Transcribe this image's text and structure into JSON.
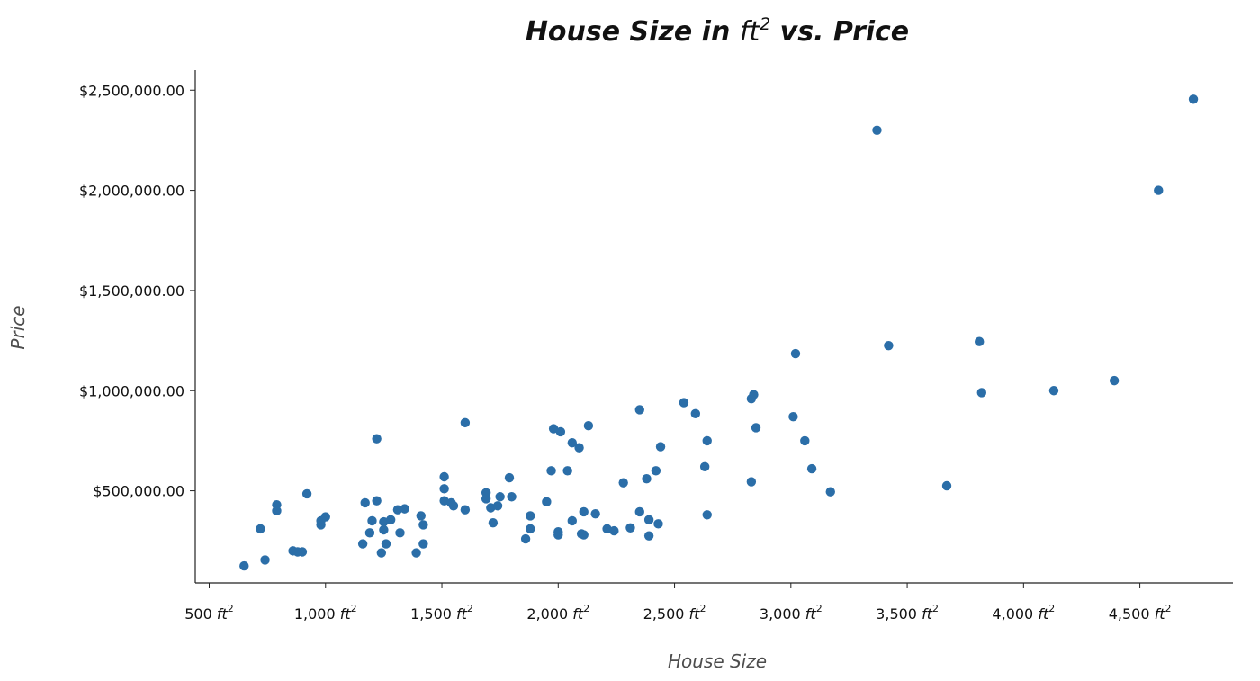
{
  "chart_data": {
    "type": "scatter",
    "title": {
      "prefix": "House Size in ",
      "unit_base": "ft",
      "unit_exp": "2",
      "suffix": " vs. Price"
    },
    "xlabel": "House Size",
    "ylabel": "Price",
    "xlim": [
      440,
      4900
    ],
    "ylim": [
      40000,
      2600000
    ],
    "grid": false,
    "marker_color": "#2b6ea8",
    "x_tick_unit": {
      "base": "ft",
      "exp": "2"
    },
    "x_ticks": [
      {
        "value": 500,
        "label": "500"
      },
      {
        "value": 1000,
        "label": "1,000"
      },
      {
        "value": 1500,
        "label": "1,500"
      },
      {
        "value": 2000,
        "label": "2,000"
      },
      {
        "value": 2500,
        "label": "2,500"
      },
      {
        "value": 3000,
        "label": "3,000"
      },
      {
        "value": 3500,
        "label": "3,500"
      },
      {
        "value": 4000,
        "label": "4,000"
      },
      {
        "value": 4500,
        "label": "4,500"
      }
    ],
    "y_ticks": [
      {
        "value": 500000,
        "label": "$500,000.00"
      },
      {
        "value": 1000000,
        "label": "$1,000,000.00"
      },
      {
        "value": 1500000,
        "label": "$1,500,000.00"
      },
      {
        "value": 2000000,
        "label": "$2,000,000.00"
      },
      {
        "value": 2500000,
        "label": "$2,500,000.00"
      }
    ],
    "series": [
      {
        "points": [
          [
            650,
            125000
          ],
          [
            720,
            310000
          ],
          [
            740,
            155000
          ],
          [
            790,
            430000
          ],
          [
            790,
            400000
          ],
          [
            860,
            200000
          ],
          [
            880,
            195000
          ],
          [
            900,
            195000
          ],
          [
            920,
            485000
          ],
          [
            980,
            350000
          ],
          [
            980,
            330000
          ],
          [
            1000,
            370000
          ],
          [
            1160,
            235000
          ],
          [
            1170,
            440000
          ],
          [
            1190,
            290000
          ],
          [
            1200,
            350000
          ],
          [
            1220,
            760000
          ],
          [
            1220,
            450000
          ],
          [
            1240,
            190000
          ],
          [
            1250,
            345000
          ],
          [
            1250,
            305000
          ],
          [
            1260,
            235000
          ],
          [
            1280,
            355000
          ],
          [
            1310,
            405000
          ],
          [
            1320,
            290000
          ],
          [
            1340,
            410000
          ],
          [
            1390,
            190000
          ],
          [
            1410,
            375000
          ],
          [
            1420,
            330000
          ],
          [
            1420,
            235000
          ],
          [
            1510,
            570000
          ],
          [
            1510,
            510000
          ],
          [
            1510,
            450000
          ],
          [
            1540,
            440000
          ],
          [
            1550,
            425000
          ],
          [
            1600,
            840000
          ],
          [
            1600,
            405000
          ],
          [
            1690,
            490000
          ],
          [
            1690,
            460000
          ],
          [
            1710,
            415000
          ],
          [
            1720,
            340000
          ],
          [
            1740,
            425000
          ],
          [
            1750,
            470000
          ],
          [
            1790,
            565000
          ],
          [
            1800,
            470000
          ],
          [
            1860,
            260000
          ],
          [
            1880,
            375000
          ],
          [
            1880,
            310000
          ],
          [
            1950,
            445000
          ],
          [
            1970,
            600000
          ],
          [
            1980,
            810000
          ],
          [
            2000,
            295000
          ],
          [
            2000,
            280000
          ],
          [
            2010,
            795000
          ],
          [
            2040,
            600000
          ],
          [
            2060,
            740000
          ],
          [
            2060,
            350000
          ],
          [
            2090,
            715000
          ],
          [
            2100,
            285000
          ],
          [
            2110,
            280000
          ],
          [
            2110,
            395000
          ],
          [
            2130,
            825000
          ],
          [
            2160,
            385000
          ],
          [
            2210,
            310000
          ],
          [
            2240,
            300000
          ],
          [
            2280,
            540000
          ],
          [
            2310,
            315000
          ],
          [
            2350,
            905000
          ],
          [
            2350,
            395000
          ],
          [
            2380,
            560000
          ],
          [
            2390,
            355000
          ],
          [
            2390,
            275000
          ],
          [
            2420,
            600000
          ],
          [
            2430,
            335000
          ],
          [
            2440,
            720000
          ],
          [
            2540,
            940000
          ],
          [
            2590,
            885000
          ],
          [
            2630,
            620000
          ],
          [
            2640,
            750000
          ],
          [
            2640,
            380000
          ],
          [
            2830,
            960000
          ],
          [
            2830,
            545000
          ],
          [
            2840,
            980000
          ],
          [
            2850,
            815000
          ],
          [
            3010,
            870000
          ],
          [
            3020,
            1185000
          ],
          [
            3060,
            750000
          ],
          [
            3090,
            610000
          ],
          [
            3170,
            495000
          ],
          [
            3370,
            2300000
          ],
          [
            3420,
            1225000
          ],
          [
            3670,
            525000
          ],
          [
            3810,
            1245000
          ],
          [
            3820,
            990000
          ],
          [
            4130,
            1000000
          ],
          [
            4390,
            1050000
          ],
          [
            4580,
            2000000
          ],
          [
            4730,
            2455000
          ]
        ]
      }
    ]
  }
}
